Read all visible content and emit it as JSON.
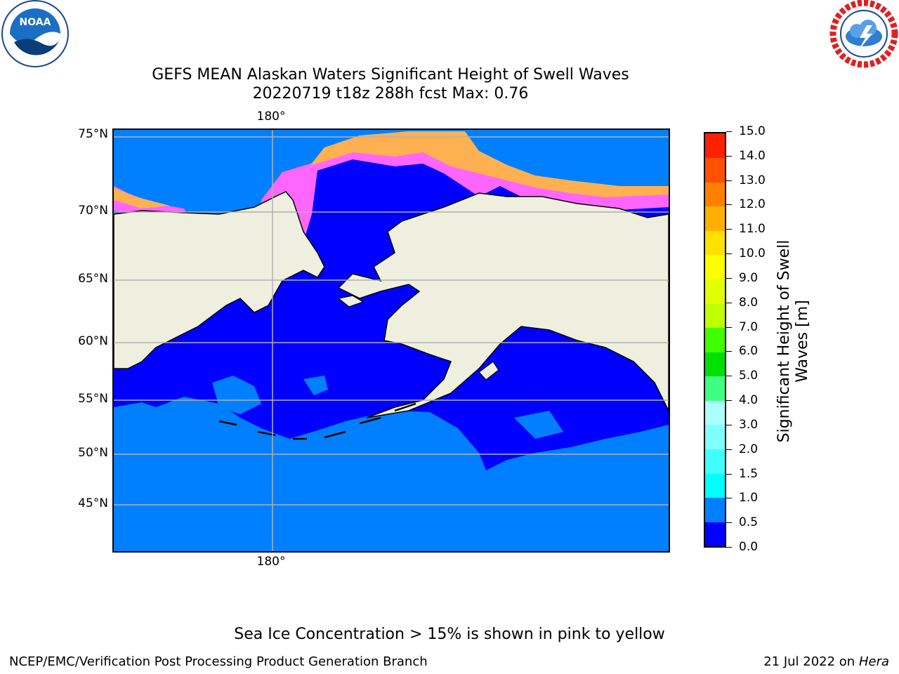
{
  "header": {
    "title_line1": "GEFS MEAN Alaskan Waters Significant Height of Swell Waves",
    "title_line2": "20220719 t18z 288h fcst   Max: 0.76"
  },
  "logos": {
    "noaa_text": "NOAA",
    "noaa_ring": "NATIONAL OCEANIC AND ATMOSPHERIC ADMINISTRATION · U.S. DEPARTMENT OF COMMERCE",
    "nws_ring": "NATIONAL WEATHER SERVICE"
  },
  "map": {
    "lon_label_top": "180°",
    "lon_label_bottom": "180°",
    "lat_labels": [
      "75°N",
      "70°N",
      "65°N",
      "60°N",
      "55°N",
      "50°N",
      "45°N"
    ],
    "colors": {
      "ocean_low": "#0000ff",
      "ocean_mid": "#0080ff",
      "land": "#efefdf",
      "ice_pink": "#ff66ff",
      "ice_orange": "#ffb050",
      "grid": "#b0b0b0"
    }
  },
  "colorbar": {
    "title_line1": "Significant Height of Swell",
    "title_line2": "Waves [m]",
    "ticks": [
      "0.0",
      "0.5",
      "1.0",
      "1.5",
      "2.0",
      "3.0",
      "4.0",
      "5.0",
      "6.0",
      "7.0",
      "8.0",
      "9.0",
      "10.0",
      "11.0",
      "12.0",
      "13.0",
      "14.0",
      "15.0"
    ],
    "colors": [
      "#0000ff",
      "#0080ff",
      "#00ffff",
      "#40ffff",
      "#80ffff",
      "#aaffff",
      "#40ff80",
      "#00e000",
      "#40ff00",
      "#c0ff00",
      "#e0ff00",
      "#ffff00",
      "#ffe000",
      "#ffb000",
      "#ff8000",
      "#ff5000",
      "#ff2000",
      "#ff0000"
    ]
  },
  "footer": {
    "note": "Sea Ice Concentration > 15% is shown in pink to yellow",
    "branch": "NCEP/EMC/Verification Post Processing Product Generation Branch",
    "date": "21 Jul 2022 on ",
    "host": "Hera"
  }
}
